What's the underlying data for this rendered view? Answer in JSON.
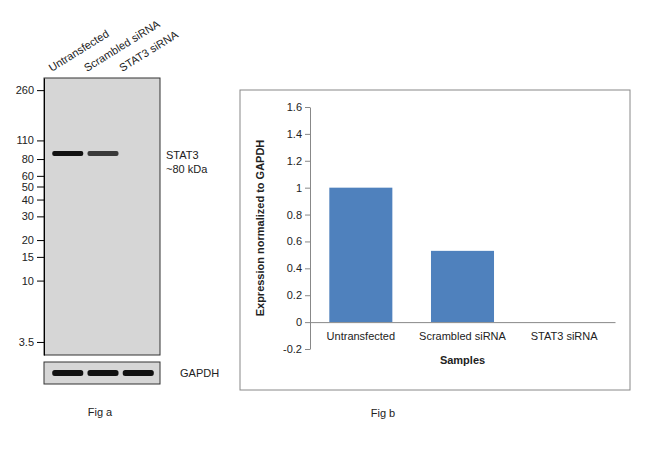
{
  "chart_data": [
    {
      "type": "blot",
      "title": "Fig a",
      "categories": [
        "Untransfected",
        "Scrambled siRNA",
        "STAT3 siRNA"
      ],
      "log": "y",
      "ylim": [
        2.8,
        320
      ],
      "yticks": [
        260,
        110,
        80,
        60,
        50,
        40,
        30,
        20,
        15,
        10,
        3.5
      ],
      "bands": [
        {
          "name": "STAT3",
          "label": "~80 kDa",
          "mw": 88,
          "intensity": [
            1,
            0.8,
            0
          ]
        }
      ],
      "loading_control": {
        "name": "GAPDH",
        "intensity": [
          1,
          1,
          1
        ]
      }
    },
    {
      "type": "bar",
      "title": "Fig b",
      "categories": [
        "Untransfected",
        "Scrambled siRNA",
        "STAT3 siRNA"
      ],
      "values": [
        1,
        0.53,
        0
      ],
      "color": "#4f81bd",
      "x_label": "Samples",
      "y_label": "Expression normalized to GAPDH",
      "ylim": [
        -0.2,
        1.6
      ],
      "yticks": [
        -0.2,
        0,
        0.2,
        0.4,
        0.6,
        0.8,
        1,
        1.2,
        1.4,
        1.6
      ]
    }
  ]
}
